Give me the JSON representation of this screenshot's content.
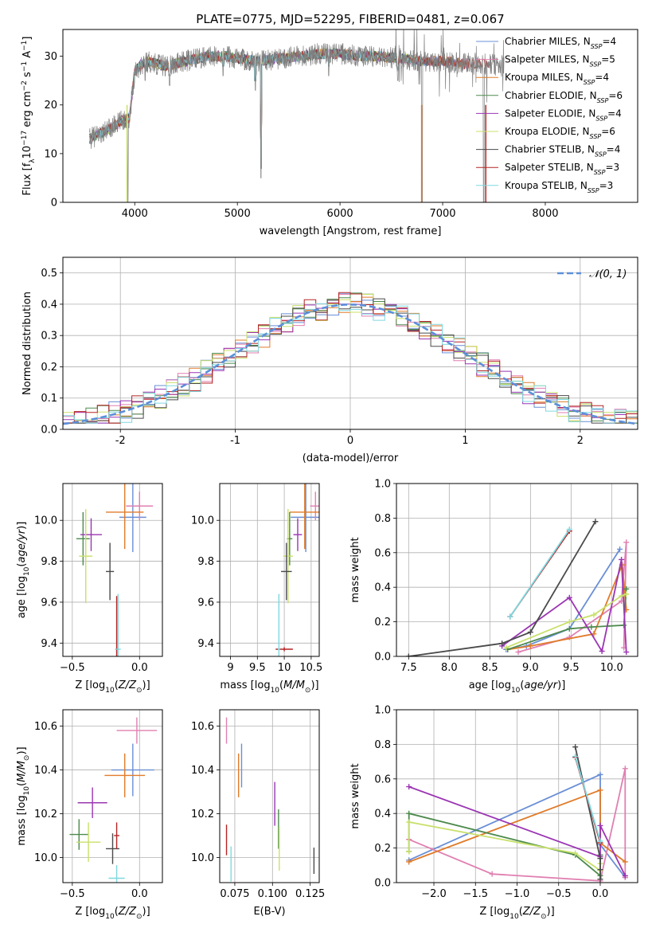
{
  "figure": {
    "title": "PLATE=0775, MJD=52295, FIBERID=0481, z=0.067"
  },
  "legend": {
    "spectrum": [
      {
        "label": "Chabrier MILES, N",
        "sub": "SSP",
        "tail": "=4",
        "color": "#6a8fd6"
      },
      {
        "label": "Salpeter MILES, N",
        "sub": "SSP",
        "tail": "=5",
        "color": "#e07fb1"
      },
      {
        "label": "Kroupa MILES, N",
        "sub": "SSP",
        "tail": "=4",
        "color": "#e07b2a"
      },
      {
        "label": "Chabrier ELODIE, N",
        "sub": "SSP",
        "tail": "=6",
        "color": "#4d8a4d"
      },
      {
        "label": "Salpeter ELODIE, N",
        "sub": "SSP",
        "tail": "=4",
        "color": "#9b35b3"
      },
      {
        "label": "Kroupa ELODIE, N",
        "sub": "SSP",
        "tail": "=6",
        "color": "#c8e06a"
      },
      {
        "label": "Chabrier STELIB, N",
        "sub": "SSP",
        "tail": "=4",
        "color": "#4a4a4a"
      },
      {
        "label": "Salpeter STELIB, N",
        "sub": "SSP",
        "tail": "=3",
        "color": "#b52424"
      },
      {
        "label": "Kroupa STELIB, N",
        "sub": "SSP",
        "tail": "=3",
        "color": "#7fd8e0"
      }
    ],
    "normal": {
      "label": "𝒩(0, 1)",
      "color": "#5b8fd9"
    }
  },
  "models": [
    {
      "name": "Chabrier MILES",
      "color": "#6a8fd6"
    },
    {
      "name": "Salpeter MILES",
      "color": "#e07fb1"
    },
    {
      "name": "Kroupa MILES",
      "color": "#e07b2a"
    },
    {
      "name": "Chabrier ELODIE",
      "color": "#4d8a4d"
    },
    {
      "name": "Salpeter ELODIE",
      "color": "#9b35b3"
    },
    {
      "name": "Kroupa ELODIE",
      "color": "#c8e06a"
    },
    {
      "name": "Chabrier STELIB",
      "color": "#4a4a4a"
    },
    {
      "name": "Salpeter STELIB",
      "color": "#b52424"
    },
    {
      "name": "Kroupa STELIB",
      "color": "#7fd8e0"
    }
  ],
  "chart_data": [
    {
      "id": "spectrum",
      "type": "line",
      "xlabel": "wavelength [Angstrom, rest frame]",
      "ylabel": "Flux [f",
      "xlim": [
        3300,
        8900
      ],
      "ylim": [
        0,
        35.5
      ],
      "xticks": [
        4000,
        5000,
        6000,
        7000,
        8000
      ],
      "yticks": [
        0,
        10,
        20,
        30
      ],
      "observed_color": "#808080",
      "continuum": [
        [
          3560,
          13
        ],
        [
          3650,
          14
        ],
        [
          3750,
          15
        ],
        [
          3850,
          16.5
        ],
        [
          3950,
          17.5
        ],
        [
          4000,
          27
        ],
        [
          4100,
          29
        ],
        [
          4200,
          28.5
        ],
        [
          4300,
          28
        ],
        [
          4400,
          28.5
        ],
        [
          4500,
          29
        ],
        [
          4600,
          29.5
        ],
        [
          4700,
          30
        ],
        [
          4800,
          30
        ],
        [
          4900,
          30
        ],
        [
          5000,
          29.5
        ],
        [
          5200,
          29
        ],
        [
          5400,
          29.5
        ],
        [
          5600,
          30
        ],
        [
          5800,
          30.5
        ],
        [
          6000,
          30.5
        ],
        [
          6200,
          30
        ],
        [
          6400,
          30
        ],
        [
          6600,
          29.5
        ],
        [
          6800,
          29
        ],
        [
          7000,
          29
        ],
        [
          7200,
          28.5
        ],
        [
          7400,
          28.5
        ],
        [
          7600,
          28
        ],
        [
          7800,
          27.5
        ],
        [
          8000,
          27.5
        ],
        [
          8200,
          27
        ],
        [
          8400,
          27
        ],
        [
          8600,
          26.5
        ],
        [
          8800,
          26.5
        ]
      ],
      "absorption_lines": [
        [
          3933,
          0
        ],
        [
          4102,
          25
        ],
        [
          4340,
          24
        ],
        [
          4861,
          26
        ],
        [
          5175,
          23
        ],
        [
          5230,
          5
        ],
        [
          5890,
          26
        ],
        [
          6563,
          25
        ],
        [
          6800,
          0
        ],
        [
          7400,
          0
        ]
      ],
      "observed_range": [
        3560,
        6800
      ],
      "model_end": [
        7250,
        7250,
        7250,
        6800,
        6800,
        6800,
        7100,
        7450,
        6800
      ]
    },
    {
      "id": "residuals",
      "type": "histogram",
      "xlabel": "(data-model)/error",
      "ylabel": "Normed distribution",
      "xlim": [
        -2.5,
        2.5
      ],
      "ylim": [
        0,
        0.55
      ],
      "xticks": [
        -2,
        -1,
        0,
        1,
        2
      ],
      "yticks": [
        0.0,
        0.1,
        0.2,
        0.3,
        0.4,
        0.5
      ],
      "bin_edges_start": -2.5,
      "bin_width": 0.1,
      "base_values": [
        0.03,
        0.033,
        0.037,
        0.041,
        0.046,
        0.051,
        0.057,
        0.064,
        0.071,
        0.079,
        0.089,
        0.097,
        0.107,
        0.117,
        0.128,
        0.14,
        0.152,
        0.165,
        0.178,
        0.191,
        0.205,
        0.22,
        0.234,
        0.248,
        0.262,
        0.276,
        0.29,
        0.304,
        0.317,
        0.33,
        0.342,
        0.354,
        0.364,
        0.374,
        0.382,
        0.389,
        0.394,
        0.398,
        0.4,
        0.4,
        0.398,
        0.394,
        0.389,
        0.382,
        0.374,
        0.364,
        0.354,
        0.342,
        0.33,
        0.317,
        0.304,
        0.29,
        0.276,
        0.262,
        0.248,
        0.234,
        0.22,
        0.205,
        0.191,
        0.178,
        0.165,
        0.152,
        0.14,
        0.128,
        0.117,
        0.107,
        0.097,
        0.089,
        0.079,
        0.071,
        0.064,
        0.057,
        0.051,
        0.046,
        0.041,
        0.037,
        0.033,
        0.03,
        0.035,
        0.032,
        0.031,
        0.03,
        0.03,
        0.03,
        0.03,
        0.03,
        0.03,
        0.03,
        0.03,
        0.03,
        0.03,
        0.03,
        0.03,
        0.03,
        0.03,
        0.03,
        0.03,
        0.03,
        0.03,
        0.03
      ],
      "normal_mean": 0,
      "normal_sigma": 1
    },
    {
      "id": "age_vs_Z",
      "type": "scatter",
      "xlabel": "Z [log",
      "ylabel": "age  [log",
      "xlim": [
        -0.57,
        0.17
      ],
      "ylim": [
        9.335,
        10.18
      ],
      "xticks": [
        -0.5,
        0.0
      ],
      "yticks": [
        9.4,
        9.6,
        9.8,
        10.0
      ],
      "points": [
        {
          "x": -0.05,
          "xerr": 0.1,
          "y": 10.015,
          "yerr": 0.17
        },
        {
          "x": 0.0,
          "xerr": 0.1,
          "y": 10.07,
          "yerr": 0.07
        },
        {
          "x": -0.11,
          "xerr": 0.14,
          "y": 10.04,
          "yerr": 0.18
        },
        {
          "x": -0.42,
          "xerr": 0.05,
          "y": 9.91,
          "yerr": 0.13
        },
        {
          "x": -0.36,
          "xerr": 0.08,
          "y": 9.93,
          "yerr": 0.08
        },
        {
          "x": -0.4,
          "xerr": 0.05,
          "y": 9.825,
          "yerr": 0.23
        },
        {
          "x": -0.22,
          "xerr": 0.03,
          "y": 9.75,
          "yerr": 0.14
        },
        {
          "x": -0.17,
          "xerr": 0.01,
          "y": 9.37,
          "yerr": 0.26
        },
        {
          "x": -0.16,
          "xerr": 0.02,
          "y": 9.37,
          "yerr": 0.27
        }
      ]
    },
    {
      "id": "age_vs_mass",
      "type": "scatter",
      "xlabel": "mass [log",
      "ylabel": "",
      "xlim": [
        8.8,
        10.65
      ],
      "ylim": [
        9.335,
        10.18
      ],
      "xticks": [
        9.0,
        9.5,
        10.0,
        10.5
      ],
      "xticklabels": [
        "9",
        "9.5",
        "10",
        "10.5"
      ],
      "yticks": [
        9.4,
        9.6,
        9.8,
        10.0
      ],
      "points": [
        {
          "x": 10.4,
          "xerr": 0.28,
          "y": 10.015,
          "yerr": 0.17
        },
        {
          "x": 10.58,
          "xerr": 0.1,
          "y": 10.07,
          "yerr": 0.07
        },
        {
          "x": 10.38,
          "xerr": 0.28,
          "y": 10.04,
          "yerr": 0.18
        },
        {
          "x": 10.1,
          "xerr": 0.05,
          "y": 9.91,
          "yerr": 0.13
        },
        {
          "x": 10.25,
          "xerr": 0.08,
          "y": 9.93,
          "yerr": 0.08
        },
        {
          "x": 10.07,
          "xerr": 0.09,
          "y": 9.825,
          "yerr": 0.23
        },
        {
          "x": 10.04,
          "xerr": 0.1,
          "y": 9.75,
          "yerr": 0.14
        },
        {
          "x": 10.0,
          "xerr": 0.16,
          "y": 9.37,
          "yerr": 0.01
        },
        {
          "x": 9.9,
          "xerr": 0.02,
          "y": 9.37,
          "yerr": 0.27
        }
      ]
    },
    {
      "id": "weight_vs_age",
      "type": "line",
      "xlabel": "age  [log",
      "ylabel": "mass weight",
      "xlim": [
        7.35,
        10.32
      ],
      "ylim": [
        0,
        1.0
      ],
      "xticks": [
        7.5,
        8.0,
        8.5,
        9.0,
        9.5,
        10.0
      ],
      "yticks": [
        0.0,
        0.2,
        0.4,
        0.6,
        0.8,
        1.0
      ],
      "series": [
        {
          "x": [
            8.7,
            8.95,
            9.48,
            10.1
          ],
          "y": [
            0.04,
            0.06,
            0.16,
            0.62
          ]
        },
        {
          "x": [
            8.85,
            9.48,
            10.12,
            10.18,
            10.15
          ],
          "y": [
            0.025,
            0.11,
            0.32,
            0.66,
            0.05
          ]
        },
        {
          "x": [
            8.72,
            9.0,
            9.78,
            10.13,
            10.18
          ],
          "y": [
            0.04,
            0.06,
            0.13,
            0.53,
            0.27
          ]
        },
        {
          "x": [
            8.72,
            9.48,
            9.75,
            10.15,
            10.18
          ],
          "y": [
            0.04,
            0.16,
            0.17,
            0.18,
            0.39
          ]
        },
        {
          "x": [
            8.65,
            9.48,
            9.88,
            10.12,
            10.18
          ],
          "y": [
            0.06,
            0.34,
            0.03,
            0.56,
            0.025
          ]
        },
        {
          "x": [
            8.7,
            9.48,
            9.78,
            10.12,
            10.18
          ],
          "y": [
            0.05,
            0.2,
            0.24,
            0.35,
            0.36
          ]
        },
        {
          "x": [
            7.5,
            8.65,
            9.0,
            9.8
          ],
          "y": [
            0.0,
            0.075,
            0.14,
            0.78
          ]
        },
        {
          "x": [
            8.75,
            9.48
          ],
          "y": [
            0.23,
            0.725
          ]
        },
        {
          "x": [
            8.75,
            9.48
          ],
          "y": [
            0.23,
            0.735
          ]
        }
      ]
    },
    {
      "id": "mass_vs_Z",
      "type": "scatter",
      "xlabel": "Z [log",
      "ylabel": "mass [log",
      "xlim": [
        -0.57,
        0.17
      ],
      "ylim": [
        9.885,
        10.675
      ],
      "xticks": [
        -0.5,
        0.0
      ],
      "yticks": [
        10.0,
        10.2,
        10.4,
        10.6
      ],
      "points": [
        {
          "x": -0.05,
          "xerr": 0.16,
          "y": 10.4,
          "yerr": 0.12
        },
        {
          "x": -0.02,
          "xerr": 0.15,
          "y": 10.58,
          "yerr": 0.06
        },
        {
          "x": -0.11,
          "xerr": 0.15,
          "y": 10.375,
          "yerr": 0.1
        },
        {
          "x": -0.45,
          "xerr": 0.07,
          "y": 10.105,
          "yerr": 0.07
        },
        {
          "x": -0.35,
          "xerr": 0.11,
          "y": 10.25,
          "yerr": 0.07
        },
        {
          "x": -0.38,
          "xerr": 0.09,
          "y": 10.07,
          "yerr": 0.09
        },
        {
          "x": -0.2,
          "xerr": 0.05,
          "y": 10.04,
          "yerr": 0.07
        },
        {
          "x": -0.17,
          "xerr": 0.02,
          "y": 10.1,
          "yerr": 0.06
        },
        {
          "x": -0.17,
          "xerr": 0.06,
          "y": 9.905,
          "yerr": 0.06
        }
      ]
    },
    {
      "id": "mass_vs_ebv",
      "type": "scatter",
      "xlabel": "E(B-V)",
      "ylabel": "",
      "xlim": [
        0.065,
        0.131
      ],
      "ylim": [
        9.885,
        10.675
      ],
      "xticks": [
        0.075,
        0.1,
        0.125
      ],
      "xticklabels": [
        "0.075",
        "0.100",
        "0.125"
      ],
      "yticks": [
        10.0,
        10.2,
        10.4,
        10.6
      ],
      "points": [
        {
          "x": 0.0795,
          "xerr": 0,
          "y": 10.42,
          "yerr": 0.1
        },
        {
          "x": 0.0695,
          "xerr": 0,
          "y": 10.58,
          "yerr": 0.06
        },
        {
          "x": 0.0775,
          "xerr": 0,
          "y": 10.375,
          "yerr": 0.1
        },
        {
          "x": 0.104,
          "xerr": 0,
          "y": 10.13,
          "yerr": 0.09
        },
        {
          "x": 0.1015,
          "xerr": 0,
          "y": 10.245,
          "yerr": 0.1
        },
        {
          "x": 0.1045,
          "xerr": 0,
          "y": 10.04,
          "yerr": 0.1
        },
        {
          "x": 0.1275,
          "xerr": 0,
          "y": 9.985,
          "yerr": 0.06
        },
        {
          "x": 0.0695,
          "xerr": 0,
          "y": 10.08,
          "yerr": 0.07
        },
        {
          "x": 0.0725,
          "xerr": 0,
          "y": 9.97,
          "yerr": 0.08
        }
      ]
    },
    {
      "id": "weight_vs_Z",
      "type": "line",
      "xlabel": "Z [log",
      "ylabel": "mass weight",
      "xlim": [
        -2.45,
        0.45
      ],
      "ylim": [
        0,
        1.0
      ],
      "xticks": [
        -2.0,
        -1.5,
        -1.0,
        -0.5,
        0.0
      ],
      "yticks": [
        0.0,
        0.2,
        0.4,
        0.6,
        0.8,
        1.0
      ],
      "series": [
        {
          "x": [
            -2.3,
            0.0,
            0.0,
            0.3
          ],
          "y": [
            0.13,
            0.625,
            0.22,
            0.03
          ]
        },
        {
          "x": [
            -2.3,
            -1.3,
            0.0,
            0.3,
            0.3
          ],
          "y": [
            0.25,
            0.05,
            0.01,
            0.66,
            0.03
          ]
        },
        {
          "x": [
            -2.3,
            0.0,
            0.0,
            0.3
          ],
          "y": [
            0.12,
            0.535,
            0.23,
            0.12
          ]
        },
        {
          "x": [
            -2.3,
            -2.3,
            -0.3,
            0.0,
            0.0
          ],
          "y": [
            0.18,
            0.4,
            0.16,
            0.04,
            0.16
          ]
        },
        {
          "x": [
            -2.3,
            0.0,
            0.0,
            0.3
          ],
          "y": [
            0.555,
            0.15,
            0.33,
            0.04
          ]
        },
        {
          "x": [
            -2.3,
            -2.3,
            -0.3,
            0.0,
            0.0
          ],
          "y": [
            0.18,
            0.35,
            0.17,
            0.07,
            0.11
          ]
        },
        {
          "x": [
            -0.3,
            0.0,
            0.0,
            0.0
          ],
          "y": [
            0.785,
            0.14,
            0.075,
            0.02
          ]
        },
        {
          "x": [
            -0.3,
            0.0
          ],
          "y": [
            0.725,
            0.23
          ]
        },
        {
          "x": [
            -0.3,
            0.0
          ],
          "y": [
            0.73,
            0.24
          ]
        }
      ]
    }
  ]
}
